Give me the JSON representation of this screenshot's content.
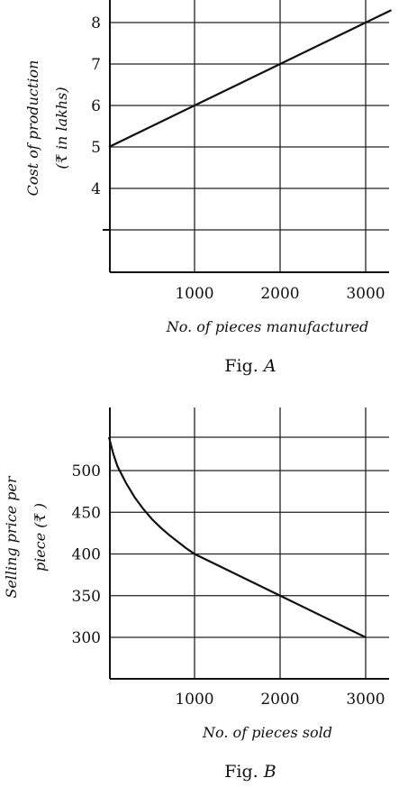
{
  "chart_data": [
    {
      "type": "line",
      "caption_prefix": "Fig. ",
      "caption_letter": "A",
      "xlabel": "No. of pieces manufactured",
      "ylabel_line1": "Cost of production",
      "ylabel_line2": "(₹ in lakhs)",
      "x_ticks": [
        "1000",
        "2000",
        "3000"
      ],
      "y_ticks": [
        "4",
        "5",
        "6",
        "7",
        "8"
      ],
      "xlim": [
        0,
        3300
      ],
      "ylim": [
        2,
        8.5
      ],
      "series": [
        {
          "x": [
            0,
            1000,
            2000,
            3000,
            3300
          ],
          "y": [
            5,
            6,
            7,
            8,
            8.3
          ]
        }
      ]
    },
    {
      "type": "line",
      "caption_prefix": "Fig. ",
      "caption_letter": "B",
      "xlabel": "No. of pieces sold",
      "ylabel_line1": "Selling price per",
      "ylabel_line2": "piece (₹ )",
      "x_ticks": [
        "1000",
        "2000",
        "3000"
      ],
      "y_ticks": [
        "300",
        "350",
        "400",
        "450",
        "500"
      ],
      "xlim": [
        0,
        3300
      ],
      "ylim": [
        250,
        575
      ],
      "series": [
        {
          "x": [
            0,
            50,
            100,
            200,
            300,
            400,
            500,
            600,
            700,
            800,
            900,
            1000,
            2000,
            3000
          ],
          "y": [
            540,
            520,
            505,
            485,
            468,
            454,
            442,
            432,
            423,
            415,
            407,
            400,
            350,
            300
          ]
        }
      ]
    }
  ]
}
